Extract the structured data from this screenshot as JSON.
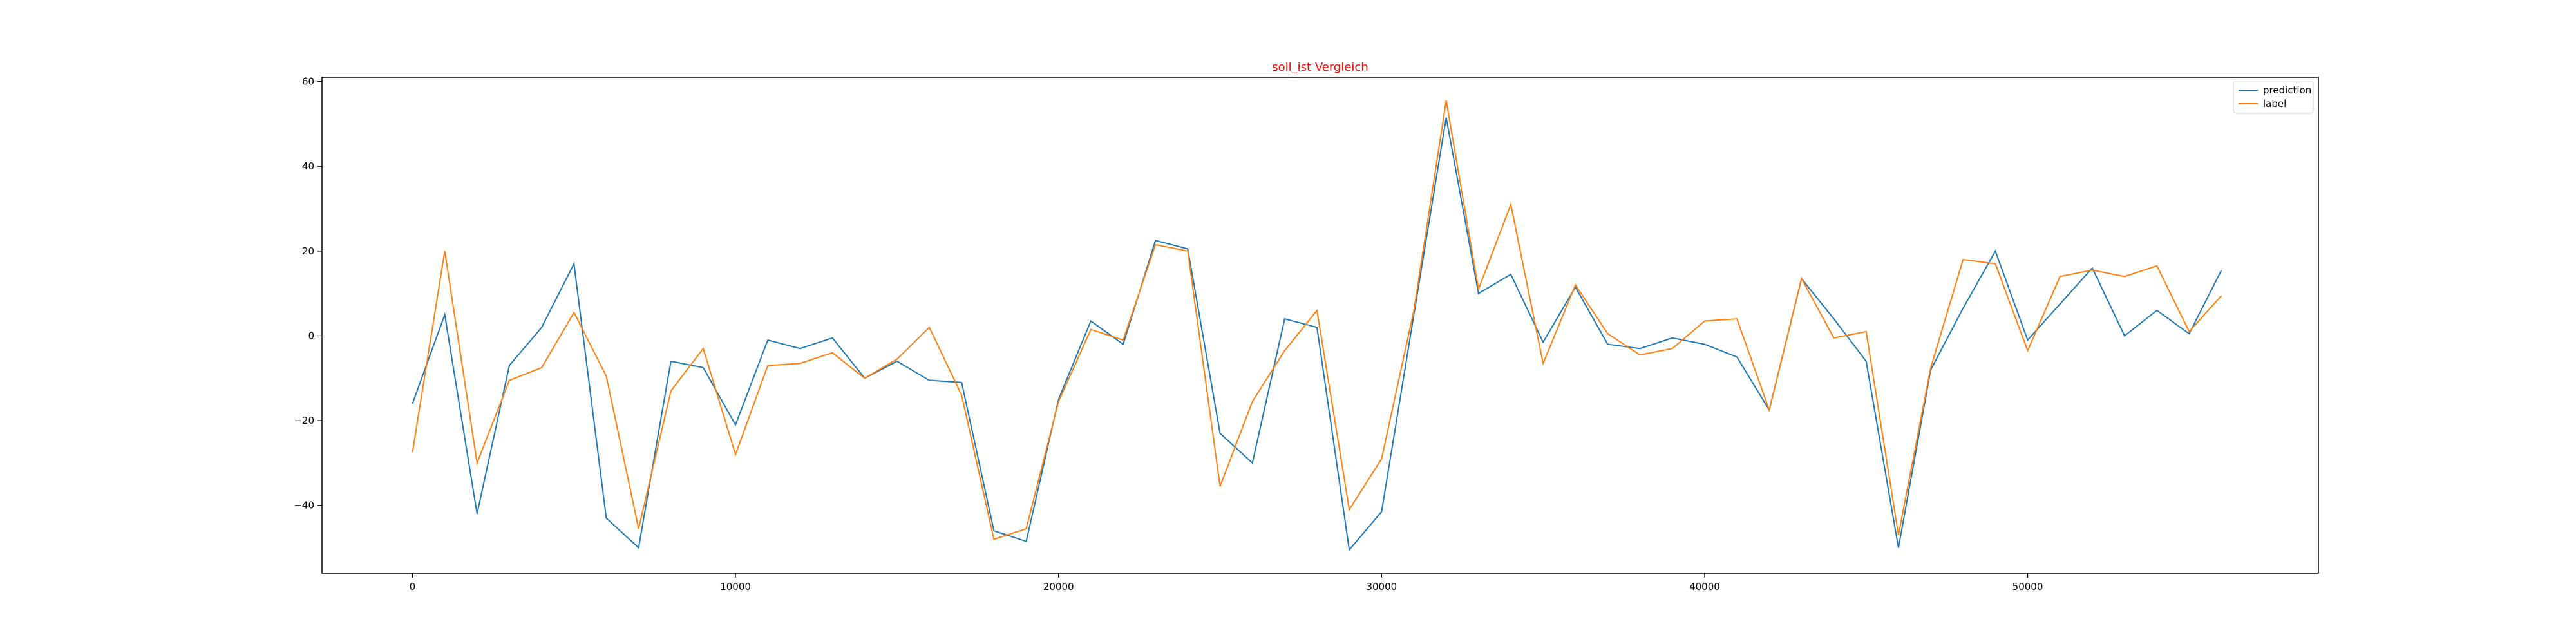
{
  "chart_data": {
    "type": "line",
    "title": "soll_ist Vergleich",
    "title_color": "#ff0000",
    "xlabel": "",
    "ylabel": "",
    "xlim": [
      -2800,
      59000
    ],
    "ylim": [
      -56,
      61
    ],
    "xticks": [
      0,
      10000,
      20000,
      30000,
      40000,
      50000
    ],
    "yticks": [
      -40,
      -20,
      0,
      20,
      40,
      60
    ],
    "xtick_labels": [
      "0",
      "10000",
      "20000",
      "30000",
      "40000",
      "50000"
    ],
    "ytick_labels": [
      "−40",
      "−20",
      "0",
      "20",
      "40",
      "60"
    ],
    "grid": false,
    "legend_position": "top-right",
    "x": [
      0,
      1000,
      2000,
      3000,
      4000,
      5000,
      6000,
      7000,
      8000,
      9000,
      10000,
      11000,
      12000,
      13000,
      14000,
      15000,
      16000,
      17000,
      18000,
      19000,
      20000,
      21000,
      22000,
      23000,
      24000,
      25000,
      26000,
      27000,
      28000,
      29000,
      30000,
      31000,
      32000,
      33000,
      34000,
      35000,
      36000,
      37000,
      38000,
      39000,
      40000,
      41000,
      42000,
      43000,
      44000,
      45000,
      46000,
      47000,
      48000,
      49000,
      50000,
      51000,
      52000,
      53000,
      54000,
      55000,
      56000
    ],
    "series": [
      {
        "name": "prediction",
        "color": "#1f77b4",
        "values": [
          -16,
          5,
          -42,
          -7,
          2,
          17,
          -43,
          -50,
          -6,
          -7.5,
          -21,
          -1,
          -3,
          -0.5,
          -10,
          -6,
          -10.5,
          -11,
          -46,
          -48.5,
          -15,
          3.5,
          -2,
          22.5,
          20.5,
          -23,
          -30,
          4,
          2,
          -50.5,
          -41.5,
          5,
          51.5,
          10,
          14.5,
          -1.5,
          11.5,
          -2,
          -3,
          -0.5,
          -2,
          -5,
          -17.5,
          13.5,
          4,
          -6,
          -50,
          -8,
          6.5,
          20,
          -1,
          7.5,
          16,
          0,
          6,
          0.5,
          15.5
        ]
      },
      {
        "name": "label",
        "color": "#ff7f0e",
        "values": [
          -27.5,
          20,
          -30,
          -10.5,
          -7.5,
          5.5,
          -9.5,
          -45.5,
          -13,
          -3,
          -28,
          -7,
          -6.5,
          -4,
          -10,
          -5.5,
          2,
          -14,
          -48,
          -45.5,
          -15.5,
          1.5,
          -1,
          21.5,
          20,
          -35.5,
          -15.5,
          -3.5,
          6,
          -41,
          -29,
          6,
          55.5,
          11,
          31,
          -6.5,
          12,
          0.5,
          -4.5,
          -3,
          3.5,
          4,
          -17.5,
          13.5,
          -0.5,
          1,
          -47,
          -7.5,
          18,
          17,
          -3.5,
          14,
          15.5,
          14,
          16.5,
          1,
          9.5
        ]
      }
    ]
  }
}
